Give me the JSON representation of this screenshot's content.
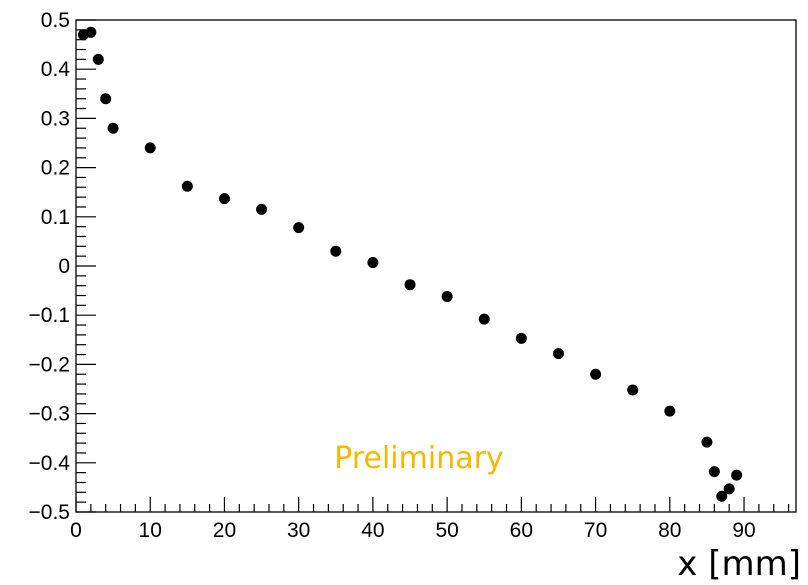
{
  "chart_data": {
    "type": "scatter",
    "title": "",
    "xlabel": "x [mm]",
    "ylabel": "",
    "xlim": [
      0,
      97
    ],
    "ylim": [
      -0.5,
      0.5
    ],
    "grid": false,
    "x_ticks": [
      0,
      10,
      20,
      30,
      40,
      50,
      60,
      70,
      80,
      90
    ],
    "x_tick_labels": [
      "0",
      "10",
      "20",
      "30",
      "40",
      "50",
      "60",
      "70",
      "80",
      "90"
    ],
    "y_ticks": [
      -0.5,
      -0.4,
      -0.3,
      -0.2,
      -0.1,
      0,
      0.1,
      0.2,
      0.3,
      0.4,
      0.5
    ],
    "y_tick_labels": [
      "−0.5",
      "−0.4",
      "−0.3",
      "−0.2",
      "−0.1",
      "0",
      "0.1",
      "0.2",
      "0.3",
      "0.4",
      "0.5"
    ],
    "series": [
      {
        "marker_color": "#000000",
        "points": [
          {
            "x": 1,
            "y": 0.47
          },
          {
            "x": 2,
            "y": 0.475
          },
          {
            "x": 3,
            "y": 0.42
          },
          {
            "x": 4,
            "y": 0.34
          },
          {
            "x": 5,
            "y": 0.28
          },
          {
            "x": 10,
            "y": 0.24
          },
          {
            "x": 15,
            "y": 0.162
          },
          {
            "x": 20,
            "y": 0.137
          },
          {
            "x": 25,
            "y": 0.115
          },
          {
            "x": 30,
            "y": 0.078
          },
          {
            "x": 35,
            "y": 0.03
          },
          {
            "x": 40,
            "y": 0.007
          },
          {
            "x": 45,
            "y": -0.038
          },
          {
            "x": 50,
            "y": -0.062
          },
          {
            "x": 55,
            "y": -0.108
          },
          {
            "x": 60,
            "y": -0.147
          },
          {
            "x": 65,
            "y": -0.178
          },
          {
            "x": 70,
            "y": -0.22
          },
          {
            "x": 75,
            "y": -0.252
          },
          {
            "x": 80,
            "y": -0.295
          },
          {
            "x": 85,
            "y": -0.358
          },
          {
            "x": 86,
            "y": -0.418
          },
          {
            "x": 87,
            "y": -0.468
          },
          {
            "x": 88,
            "y": -0.453
          },
          {
            "x": 89,
            "y": -0.425
          }
        ]
      }
    ],
    "annotation": {
      "text": "Preliminary",
      "color": "#F5B800"
    }
  }
}
